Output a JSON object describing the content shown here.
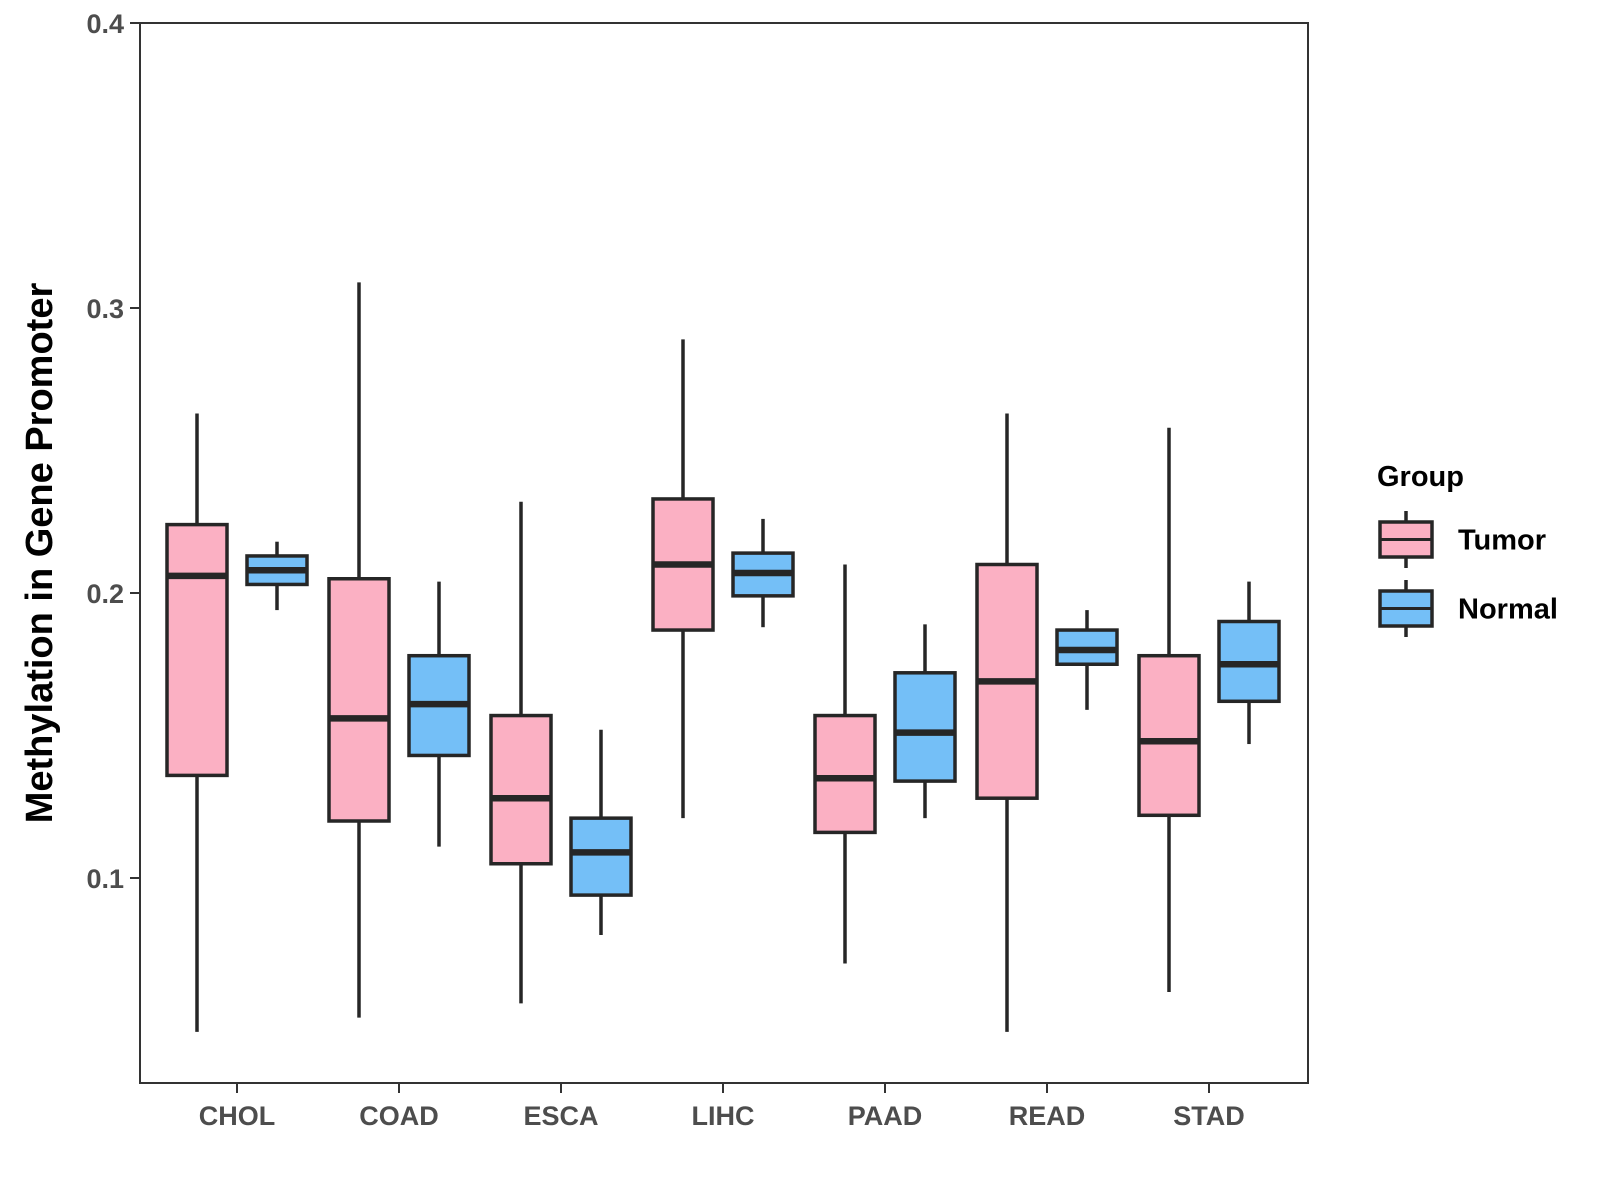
{
  "chart_data": {
    "type": "boxplot",
    "title": "",
    "xlabel": "",
    "ylabel": "Methylation in Gene Promoter",
    "ylim": [
      0.03,
      0.4
    ],
    "yticks": [
      0.1,
      0.2,
      0.3,
      0.4
    ],
    "ytick_labels": [
      "0.1",
      "0.2",
      "0.3",
      "0.4"
    ],
    "grid": false,
    "categories": [
      "CHOL",
      "COAD",
      "ESCA",
      "LIHC",
      "PAAD",
      "READ",
      "STAD"
    ],
    "legend": {
      "title": "Group",
      "position": "right",
      "entries": [
        {
          "name": "Tumor",
          "color": "#fbb0c3"
        },
        {
          "name": "Normal",
          "color": "#74bff7"
        }
      ]
    },
    "series": [
      {
        "name": "Tumor",
        "color": "#fbb0c3",
        "boxes": [
          {
            "min": 0.046,
            "q1": 0.136,
            "median": 0.206,
            "q3": 0.224,
            "max": 0.263
          },
          {
            "min": 0.051,
            "q1": 0.12,
            "median": 0.156,
            "q3": 0.205,
            "max": 0.309
          },
          {
            "min": 0.056,
            "q1": 0.105,
            "median": 0.128,
            "q3": 0.157,
            "max": 0.232
          },
          {
            "min": 0.121,
            "q1": 0.187,
            "median": 0.21,
            "q3": 0.233,
            "max": 0.289
          },
          {
            "min": 0.07,
            "q1": 0.116,
            "median": 0.135,
            "q3": 0.157,
            "max": 0.21
          },
          {
            "min": 0.046,
            "q1": 0.128,
            "median": 0.169,
            "q3": 0.21,
            "max": 0.263
          },
          {
            "min": 0.06,
            "q1": 0.122,
            "median": 0.148,
            "q3": 0.178,
            "max": 0.258
          }
        ]
      },
      {
        "name": "Normal",
        "color": "#74bff7",
        "boxes": [
          {
            "min": 0.194,
            "q1": 0.203,
            "median": 0.208,
            "q3": 0.213,
            "max": 0.218
          },
          {
            "min": 0.111,
            "q1": 0.143,
            "median": 0.161,
            "q3": 0.178,
            "max": 0.204
          },
          {
            "min": 0.08,
            "q1": 0.094,
            "median": 0.109,
            "q3": 0.121,
            "max": 0.152
          },
          {
            "min": 0.188,
            "q1": 0.199,
            "median": 0.207,
            "q3": 0.214,
            "max": 0.226
          },
          {
            "min": 0.121,
            "q1": 0.134,
            "median": 0.151,
            "q3": 0.172,
            "max": 0.189
          },
          {
            "min": 0.159,
            "q1": 0.175,
            "median": 0.18,
            "q3": 0.187,
            "max": 0.194
          },
          {
            "min": 0.147,
            "q1": 0.162,
            "median": 0.175,
            "q3": 0.19,
            "max": 0.204
          }
        ]
      }
    ]
  }
}
